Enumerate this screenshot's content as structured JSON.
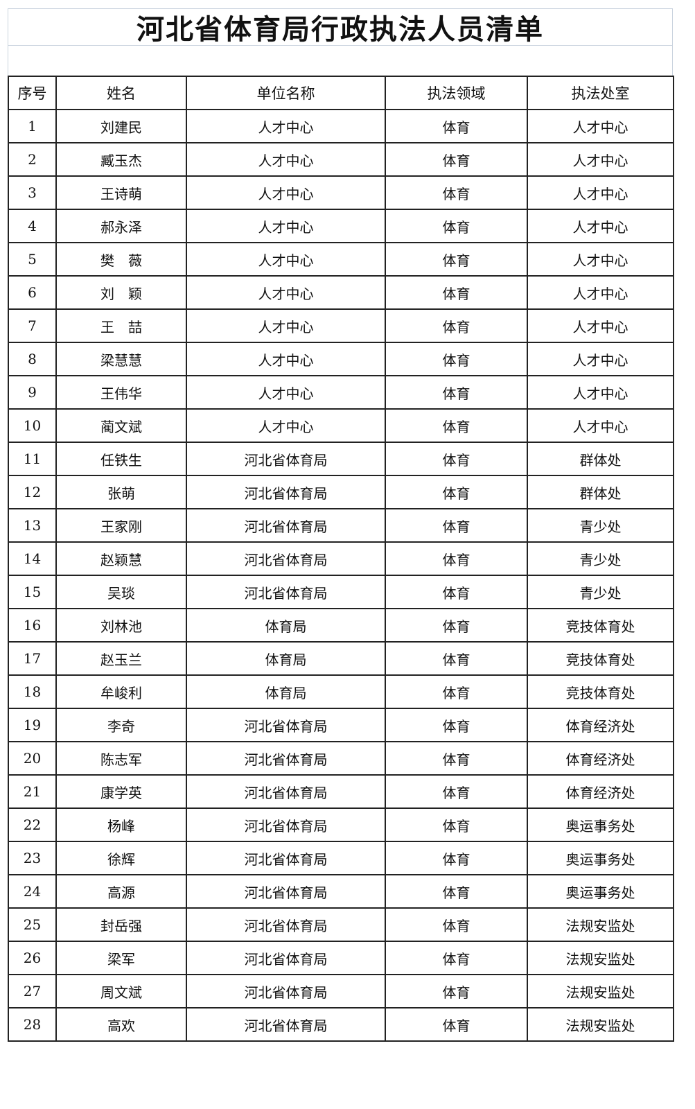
{
  "title": "河北省体育局行政执法人员清单",
  "headers": [
    "序号",
    "姓名",
    "单位名称",
    "执法领域",
    "执法处室"
  ],
  "rows": [
    [
      "1",
      "刘建民",
      "人才中心",
      "体育",
      "人才中心"
    ],
    [
      "2",
      "臧玉杰",
      "人才中心",
      "体育",
      "人才中心"
    ],
    [
      "3",
      "王诗萌",
      "人才中心",
      "体育",
      "人才中心"
    ],
    [
      "4",
      "郝永泽",
      "人才中心",
      "体育",
      "人才中心"
    ],
    [
      "5",
      "樊　薇",
      "人才中心",
      "体育",
      "人才中心"
    ],
    [
      "6",
      "刘　颖",
      "人才中心",
      "体育",
      "人才中心"
    ],
    [
      "7",
      "王　喆",
      "人才中心",
      "体育",
      "人才中心"
    ],
    [
      "8",
      "梁慧慧",
      "人才中心",
      "体育",
      "人才中心"
    ],
    [
      "9",
      "王伟华",
      "人才中心",
      "体育",
      "人才中心"
    ],
    [
      "10",
      "蔺文斌",
      "人才中心",
      "体育",
      "人才中心"
    ],
    [
      "11",
      "任铁生",
      "河北省体育局",
      "体育",
      "群体处"
    ],
    [
      "12",
      "张萌",
      "河北省体育局",
      "体育",
      "群体处"
    ],
    [
      "13",
      "王家刚",
      "河北省体育局",
      "体育",
      "青少处"
    ],
    [
      "14",
      "赵颖慧",
      "河北省体育局",
      "体育",
      "青少处"
    ],
    [
      "15",
      "吴琰",
      "河北省体育局",
      "体育",
      "青少处"
    ],
    [
      "16",
      "刘林池",
      "体育局",
      "体育",
      "竞技体育处"
    ],
    [
      "17",
      "赵玉兰",
      "体育局",
      "体育",
      "竞技体育处"
    ],
    [
      "18",
      "牟峻利",
      "体育局",
      "体育",
      "竞技体育处"
    ],
    [
      "19",
      "李奇",
      "河北省体育局",
      "体育",
      "体育经济处"
    ],
    [
      "20",
      "陈志军",
      "河北省体育局",
      "体育",
      "体育经济处"
    ],
    [
      "21",
      "康学英",
      "河北省体育局",
      "体育",
      "体育经济处"
    ],
    [
      "22",
      "杨峰",
      "河北省体育局",
      "体育",
      "奥运事务处"
    ],
    [
      "23",
      "徐辉",
      "河北省体育局",
      "体育",
      "奥运事务处"
    ],
    [
      "24",
      "高源",
      "河北省体育局",
      "体育",
      "奥运事务处"
    ],
    [
      "25",
      "封岳强",
      "河北省体育局",
      "体育",
      "法规安监处"
    ],
    [
      "26",
      "梁军",
      "河北省体育局",
      "体育",
      "法规安监处"
    ],
    [
      "27",
      "周文斌",
      "河北省体育局",
      "体育",
      "法规安监处"
    ],
    [
      "28",
      "高欢",
      "河北省体育局",
      "体育",
      "法规安监处"
    ]
  ]
}
